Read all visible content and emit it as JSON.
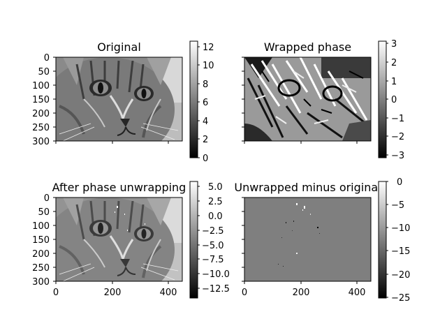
{
  "chart_data": [
    {
      "type": "heatmap",
      "title": "Original",
      "image": "cat-grayscale",
      "yticks": [
        "0",
        "50",
        "100",
        "150",
        "200",
        "250",
        "300"
      ],
      "xticks": [],
      "colorbar": {
        "ticks": [
          "0",
          "2",
          "4",
          "6",
          "8",
          "10",
          "12"
        ],
        "range": [
          0,
          12.6
        ],
        "colormap": "gray"
      }
    },
    {
      "type": "heatmap",
      "title": "Wrapped phase",
      "image": "cat-wrapped-phase",
      "yticks": [],
      "xticks": [],
      "colorbar": {
        "ticks": [
          "−3",
          "−2",
          "−1",
          "0",
          "1",
          "2",
          "3"
        ],
        "range": [
          -3.14,
          3.14
        ],
        "colormap": "gray"
      }
    },
    {
      "type": "heatmap",
      "title": "After phase unwrapping",
      "image": "cat-unwrapped",
      "yticks": [
        "0",
        "50",
        "100",
        "150",
        "200",
        "250",
        "300"
      ],
      "xticks": [
        "0",
        "200",
        "400"
      ],
      "colorbar": {
        "ticks": [
          "5.0",
          "2.5",
          "0.0",
          "−2.5",
          "−5.0",
          "−7.5",
          "−10.0",
          "−12.5"
        ],
        "range": [
          -14,
          6
        ],
        "colormap": "gray"
      }
    },
    {
      "type": "heatmap",
      "title": "Unwrapped minus original",
      "image": "difference-map",
      "yticks": [],
      "xticks": [
        "0",
        "200",
        "400"
      ],
      "colorbar": {
        "ticks": [
          "0",
          "−5",
          "−10",
          "−15",
          "−20",
          "−25"
        ],
        "range": [
          -25.1,
          0
        ],
        "colormap": "gray"
      }
    }
  ]
}
